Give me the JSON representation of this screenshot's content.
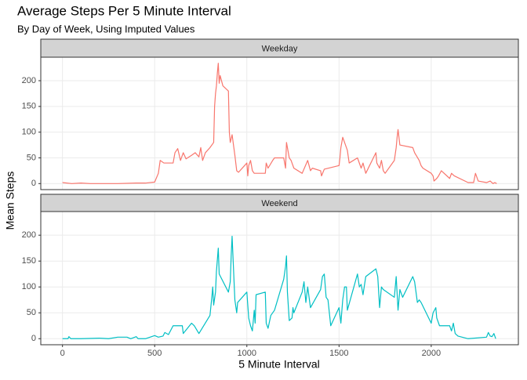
{
  "chart_data": {
    "type": "line",
    "title": "Average Steps Per 5 Minute Interval",
    "subtitle": "By Day of Week, Using Imputed Values",
    "x_label": "5 Minute Interval",
    "y_label": "Mean Steps",
    "xlim": [
      -117.75,
      2472.75
    ],
    "xticks": [
      0,
      500,
      1000,
      1500,
      2000
    ],
    "ylim": [
      -11.7,
      245.7
    ],
    "yticks": [
      0,
      50,
      100,
      150,
      200
    ],
    "grid": true,
    "series": [
      {
        "name": "Weekday",
        "color": "#f8766d",
        "x": [
          0,
          50,
          100,
          150,
          200,
          300,
          400,
          450,
          500,
          520,
          530,
          550,
          600,
          610,
          625,
          640,
          655,
          670,
          700,
          720,
          740,
          750,
          760,
          775,
          800,
          820,
          825,
          830,
          835,
          840,
          845,
          850,
          855,
          870,
          900,
          905,
          910,
          920,
          935,
          945,
          955,
          1000,
          1005,
          1010,
          1020,
          1030,
          1040,
          1100,
          1105,
          1115,
          1140,
          1150,
          1200,
          1210,
          1215,
          1230,
          1240,
          1255,
          1300,
          1330,
          1345,
          1355,
          1400,
          1405,
          1420,
          1500,
          1505,
          1510,
          1520,
          1530,
          1545,
          1555,
          1600,
          1620,
          1630,
          1645,
          1700,
          1705,
          1720,
          1730,
          1740,
          1750,
          1800,
          1810,
          1815,
          1820,
          1830,
          1900,
          1910,
          1935,
          1945,
          1955,
          2000,
          2010,
          2015,
          2030,
          2040,
          2055,
          2100,
          2110,
          2125,
          2200,
          2230,
          2240,
          2255,
          2300,
          2320,
          2335,
          2345,
          2355
        ],
        "values": [
          2,
          0,
          1,
          0,
          0,
          0,
          1,
          1,
          3,
          20,
          45,
          40,
          40,
          60,
          68,
          45,
          60,
          48,
          55,
          60,
          52,
          70,
          45,
          60,
          70,
          80,
          150,
          175,
          190,
          215,
          234,
          195,
          210,
          190,
          180,
          100,
          80,
          95,
          55,
          25,
          22,
          40,
          15,
          35,
          45,
          25,
          20,
          20,
          40,
          30,
          45,
          50,
          50,
          30,
          80,
          50,
          45,
          30,
          20,
          45,
          25,
          30,
          25,
          15,
          28,
          35,
          50,
          70,
          90,
          80,
          65,
          40,
          50,
          30,
          40,
          20,
          60,
          40,
          30,
          45,
          25,
          20,
          45,
          70,
          90,
          105,
          75,
          70,
          60,
          45,
          35,
          30,
          20,
          15,
          5,
          10,
          15,
          25,
          10,
          20,
          15,
          2,
          2,
          20,
          5,
          2,
          5,
          0,
          2,
          0
        ]
      },
      {
        "name": "Weekend",
        "color": "#00bfc4",
        "x": [
          0,
          30,
          35,
          45,
          100,
          200,
          250,
          300,
          350,
          370,
          400,
          410,
          450,
          500,
          520,
          545,
          555,
          575,
          600,
          650,
          655,
          700,
          715,
          740,
          800,
          810,
          815,
          820,
          830,
          835,
          845,
          850,
          900,
          910,
          915,
          920,
          930,
          935,
          945,
          950,
          1000,
          1005,
          1010,
          1020,
          1030,
          1040,
          1045,
          1050,
          1100,
          1105,
          1115,
          1130,
          1150,
          1200,
          1210,
          1215,
          1220,
          1230,
          1245,
          1250,
          1255,
          1300,
          1310,
          1320,
          1330,
          1345,
          1400,
          1410,
          1420,
          1430,
          1440,
          1455,
          1500,
          1510,
          1520,
          1530,
          1540,
          1545,
          1600,
          1610,
          1620,
          1630,
          1645,
          1700,
          1710,
          1720,
          1730,
          1740,
          1800,
          1810,
          1820,
          1830,
          1845,
          1900,
          1910,
          1925,
          1935,
          1945,
          2000,
          2010,
          2025,
          2030,
          2045,
          2100,
          2110,
          2120,
          2130,
          2145,
          2200,
          2300,
          2310,
          2320,
          2330,
          2340,
          2350
        ],
        "values": [
          0,
          0,
          4,
          0,
          0,
          1,
          0,
          3,
          3,
          0,
          4,
          0,
          0,
          6,
          3,
          5,
          12,
          8,
          25,
          25,
          10,
          30,
          25,
          10,
          45,
          80,
          100,
          65,
          90,
          130,
          175,
          125,
          90,
          110,
          160,
          198,
          115,
          75,
          50,
          70,
          90,
          65,
          40,
          25,
          15,
          55,
          30,
          85,
          90,
          30,
          20,
          45,
          55,
          115,
          140,
          160,
          90,
          35,
          40,
          60,
          50,
          90,
          110,
          70,
          100,
          60,
          95,
          120,
          125,
          80,
          75,
          25,
          60,
          30,
          75,
          100,
          100,
          55,
          125,
          100,
          105,
          85,
          120,
          135,
          120,
          60,
          100,
          95,
          80,
          120,
          55,
          95,
          80,
          120,
          110,
          70,
          75,
          70,
          30,
          50,
          60,
          40,
          25,
          25,
          15,
          30,
          10,
          5,
          0,
          3,
          12,
          5,
          4,
          10,
          0
        ]
      }
    ]
  }
}
